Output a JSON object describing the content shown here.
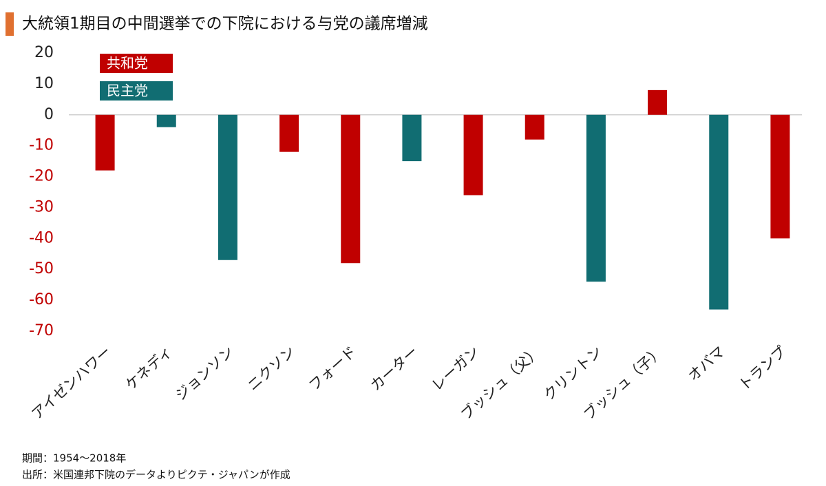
{
  "chart_data": {
    "type": "bar",
    "title": "大統領1期目の中間選挙での下院における与党の議席増減",
    "categories": [
      "アイゼンハワー",
      "ケネディ",
      "ジョンソン",
      "ニクソン",
      "フォード",
      "カーター",
      "レーガン",
      "ブッシュ（父）",
      "クリントン",
      "ブッシュ（子）",
      "オバマ",
      "トランプ"
    ],
    "series": [
      {
        "name": "共和党",
        "color": "#c00000",
        "values": [
          -18,
          null,
          null,
          -12,
          -48,
          null,
          -26,
          -8,
          null,
          8,
          null,
          -40
        ]
      },
      {
        "name": "民主党",
        "color": "#116d72",
        "values": [
          null,
          -4,
          -47,
          null,
          null,
          -15,
          null,
          null,
          -54,
          null,
          -63,
          null
        ]
      }
    ],
    "ylim": [
      -70,
      20
    ],
    "yticks": [
      20,
      10,
      0,
      -10,
      -20,
      -30,
      -40,
      -50,
      -60,
      -70
    ],
    "notes": [
      "期間：1954〜2018年",
      "出所：米国連邦下院のデータよりピクテ・ジャパンが作成"
    ]
  }
}
